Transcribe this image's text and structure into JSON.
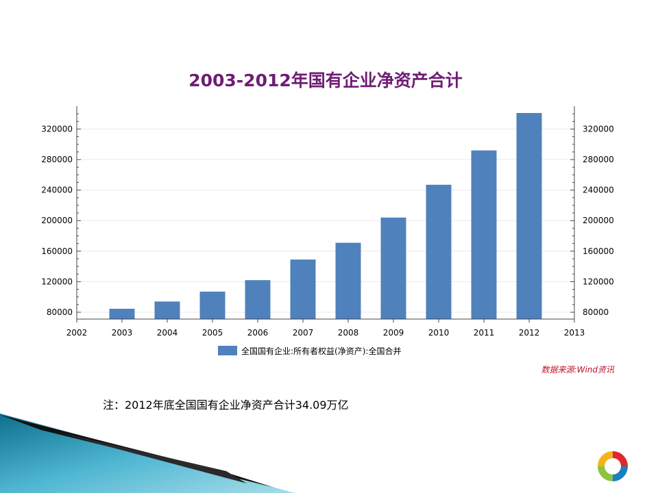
{
  "chart_data": {
    "type": "bar",
    "title": "2003-2012年国有企业净资产合计",
    "categories": [
      "2003",
      "2004",
      "2005",
      "2006",
      "2007",
      "2008",
      "2009",
      "2010",
      "2011",
      "2012"
    ],
    "x_ticks": [
      "2002",
      "2003",
      "2004",
      "2005",
      "2006",
      "2007",
      "2008",
      "2009",
      "2010",
      "2011",
      "2012",
      "2013"
    ],
    "series": [
      {
        "name": "全国国有企业:所有者权益(净资产):全国合并",
        "values": [
          84500,
          94000,
          107000,
          122000,
          149000,
          171000,
          204000,
          247000,
          292000,
          341000
        ]
      }
    ],
    "y_ticks": [
      80000,
      120000,
      160000,
      200000,
      240000,
      280000,
      320000
    ],
    "y_ticks_right": [
      80000,
      120000,
      160000,
      200000,
      240000,
      280000,
      320000
    ],
    "ylim": [
      71000,
      350000
    ],
    "xlabel": "",
    "ylabel": "",
    "bar_color": "#4f81bd",
    "legend_position": "bottom",
    "grid": true
  },
  "source_text": "数据来源:Wind资讯",
  "note_text": "注：2012年底全国国有企业净资产合计34.09万亿",
  "colors": {
    "title": "#6f1c74",
    "source": "#c0112a",
    "bar": "#4f81bd"
  }
}
